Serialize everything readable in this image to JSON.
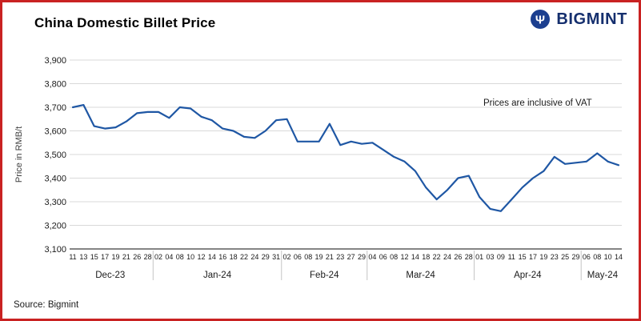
{
  "header": {
    "title": "China Domestic Billet Price",
    "brand": "BIGMINT"
  },
  "footer": {
    "source": "Source: Bigmint"
  },
  "chart_data": {
    "type": "line",
    "title": "China Domestic Billet Price",
    "ylabel": "Price in RMB/t",
    "annotation": "Prices are inclusive of VAT",
    "ylim": [
      3100,
      3900
    ],
    "y_tick_step": 100,
    "grid": true,
    "legend": "none",
    "line_color": "#1f57a4",
    "categories": [
      "11",
      "13",
      "15",
      "17",
      "19",
      "21",
      "26",
      "28",
      "02",
      "04",
      "08",
      "10",
      "12",
      "14",
      "16",
      "18",
      "22",
      "24",
      "29",
      "31",
      "02",
      "06",
      "08",
      "19",
      "21",
      "23",
      "27",
      "29",
      "04",
      "06",
      "08",
      "12",
      "14",
      "18",
      "22",
      "24",
      "26",
      "28",
      "01",
      "03",
      "09",
      "11",
      "15",
      "17",
      "19",
      "23",
      "25",
      "29",
      "06",
      "08",
      "10",
      "14"
    ],
    "month_groups": [
      {
        "label": "Dec-23",
        "count": 8
      },
      {
        "label": "Jan-24",
        "count": 12
      },
      {
        "label": "Feb-24",
        "count": 8
      },
      {
        "label": "Mar-24",
        "count": 10
      },
      {
        "label": "Apr-24",
        "count": 10
      },
      {
        "label": "May-24",
        "count": 4
      }
    ],
    "values": [
      3700,
      3710,
      3620,
      3610,
      3615,
      3640,
      3675,
      3680,
      3680,
      3655,
      3700,
      3695,
      3660,
      3645,
      3610,
      3600,
      3575,
      3570,
      3600,
      3645,
      3650,
      3555,
      3555,
      3555,
      3630,
      3540,
      3555,
      3545,
      3550,
      3520,
      3490,
      3470,
      3430,
      3360,
      3310,
      3350,
      3400,
      3410,
      3320,
      3270,
      3260,
      3310,
      3360,
      3400,
      3430,
      3490,
      3460,
      3465,
      3470,
      3505,
      3470,
      3455
    ]
  }
}
